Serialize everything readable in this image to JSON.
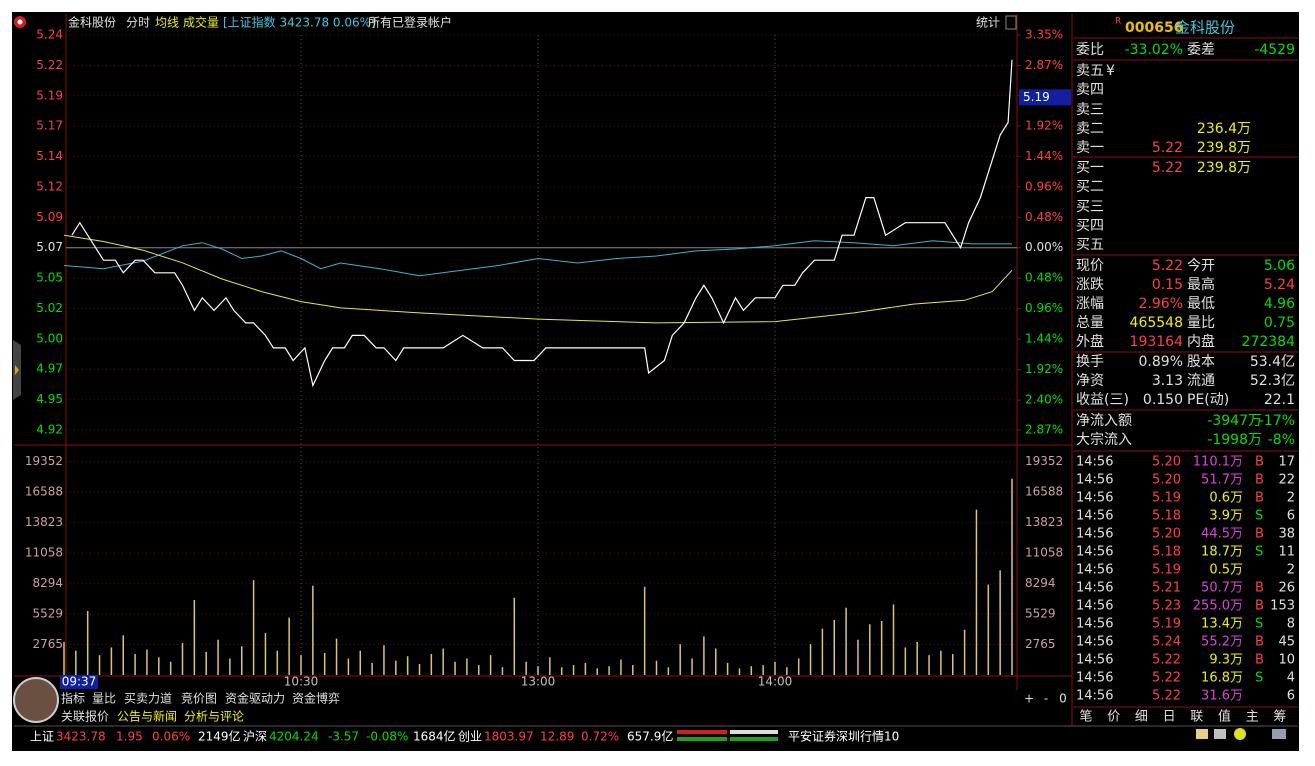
{
  "header": {
    "stock_name": "金科股份",
    "tabs": [
      "分时",
      "均线",
      "成交量"
    ],
    "index_info": "[上证指数 3423.78 0.06%]",
    "account": "所有已登录帐户",
    "stats_button": "统计"
  },
  "chart_data": {
    "type": "line",
    "xlim": [
      0,
      240
    ],
    "xticks": [
      {
        "value": 60,
        "label": "10:30"
      },
      {
        "value": 120,
        "label": "13:00"
      },
      {
        "value": 180,
        "label": "14:00"
      }
    ],
    "cursor_x": {
      "value": 7,
      "label": "09:37"
    },
    "ylim": [
      4.9245,
      5.2398
    ],
    "yticks": [
      {
        "value": 5.2398,
        "label": "5.24"
      },
      {
        "value": 5.2155,
        "label": "5.22"
      },
      {
        "value": 5.1913,
        "label": "5.19"
      },
      {
        "value": 5.167,
        "label": "5.17"
      },
      {
        "value": 5.1428,
        "label": "5.14"
      },
      {
        "value": 5.1185,
        "label": "5.12"
      },
      {
        "value": 5.0943,
        "label": "5.09"
      },
      5.07,
      {
        "value": 5.0457,
        "label": "5.05"
      },
      {
        "value": 5.0215,
        "label": "5.02"
      },
      {
        "value": 4.9972,
        "label": "5.00"
      },
      {
        "value": 4.973,
        "label": "4.97"
      },
      {
        "value": 4.9487,
        "label": "4.95"
      },
      {
        "value": 4.9245,
        "label": "4.92"
      }
    ],
    "y2lim": [
      -2.87,
      3.35
    ],
    "y2ticks": [
      {
        "value": 3.35,
        "label": "3.35%"
      },
      {
        "value": 2.87,
        "label": "2.87%"
      },
      {
        "value": 2.4,
        "label": "2.40%"
      },
      {
        "value": 1.92,
        "label": "1.92%"
      },
      {
        "value": 1.44,
        "label": "1.44%"
      },
      {
        "value": 0.96,
        "label": "0.96%"
      },
      {
        "value": 0.48,
        "label": "0.48%"
      },
      {
        "value": 0,
        "label": "0.00%"
      },
      {
        "value": -0.48,
        "label": "0.48%"
      },
      {
        "value": -0.96,
        "label": "0.96%"
      },
      {
        "value": -1.44,
        "label": "1.44%"
      },
      {
        "value": -1.92,
        "label": "1.92%"
      },
      {
        "value": -2.4,
        "label": "2.40%"
      },
      {
        "value": -2.87,
        "label": "2.87%"
      }
    ],
    "grid": true,
    "price_tag": 5.19,
    "price": {
      "color": "#ffffff",
      "x": [
        2,
        4,
        6,
        8,
        10,
        13,
        15,
        18,
        20,
        23,
        25,
        28,
        30,
        33,
        35,
        38,
        41,
        43,
        46,
        48,
        51,
        53,
        56,
        58,
        61,
        63,
        66,
        68,
        71,
        73,
        76,
        79,
        81,
        84,
        86,
        91,
        96,
        101,
        106,
        111,
        114,
        116,
        119,
        122,
        124,
        127,
        132,
        137,
        142,
        147,
        148,
        152,
        154,
        157,
        160,
        162,
        164,
        167,
        170,
        172,
        175,
        177,
        180,
        182,
        185,
        187,
        190,
        192,
        195,
        197,
        200,
        203,
        205,
        208,
        213,
        218,
        223,
        227,
        229,
        232,
        234,
        237,
        239,
        240
      ],
      "values": [
        5.08,
        5.09,
        5.08,
        5.07,
        5.06,
        5.06,
        5.05,
        5.06,
        5.06,
        5.05,
        5.05,
        5.05,
        5.04,
        5.02,
        5.03,
        5.02,
        5.03,
        5.02,
        5.01,
        5.01,
        5.0,
        4.99,
        4.99,
        4.98,
        4.99,
        4.96,
        4.98,
        4.99,
        4.99,
        5.0,
        5.0,
        4.99,
        4.99,
        4.98,
        4.99,
        4.99,
        4.99,
        5.0,
        4.99,
        4.99,
        4.98,
        4.98,
        4.98,
        4.99,
        4.99,
        4.99,
        4.99,
        4.99,
        4.99,
        4.99,
        4.97,
        4.98,
        5.0,
        5.01,
        5.03,
        5.04,
        5.03,
        5.01,
        5.03,
        5.02,
        5.03,
        5.03,
        5.03,
        5.04,
        5.04,
        5.05,
        5.06,
        5.06,
        5.06,
        5.08,
        5.08,
        5.11,
        5.11,
        5.08,
        5.09,
        5.09,
        5.09,
        5.07,
        5.09,
        5.11,
        5.13,
        5.16,
        5.17,
        5.22
      ]
    },
    "average": {
      "color": "#e6e650",
      "x": [
        0,
        10,
        20,
        30,
        40,
        50,
        60,
        70,
        90,
        120,
        150,
        180,
        200,
        215,
        228,
        235,
        240
      ],
      "values": [
        5.08,
        5.075,
        5.068,
        5.058,
        5.045,
        5.035,
        5.027,
        5.022,
        5.018,
        5.013,
        5.01,
        5.011,
        5.018,
        5.025,
        5.028,
        5.035,
        5.052
      ]
    },
    "index": {
      "color": "#3cb4cc",
      "axis": "y2",
      "x": [
        0,
        10,
        20,
        30,
        35,
        40,
        45,
        50,
        55,
        60,
        65,
        70,
        80,
        90,
        100,
        110,
        120,
        130,
        140,
        150,
        160,
        170,
        180,
        190,
        200,
        210,
        220,
        230,
        240
      ],
      "values": [
        -0.28,
        -0.33,
        -0.21,
        0.03,
        0.08,
        -0.02,
        -0.17,
        -0.13,
        -0.05,
        -0.17,
        -0.33,
        -0.24,
        -0.33,
        -0.44,
        -0.36,
        -0.28,
        -0.17,
        -0.24,
        -0.17,
        -0.13,
        -0.05,
        -0.02,
        0.03,
        0.11,
        0.08,
        0.03,
        0.11,
        0.06,
        0.06
      ]
    },
    "volume": {
      "color": "#d8c86c",
      "ylim": [
        0,
        20500
      ],
      "yticks": [
        19352,
        16588,
        13823,
        11058,
        8294,
        5529,
        2765
      ],
      "x": [
        0,
        3,
        6,
        9,
        12,
        15,
        18,
        21,
        24,
        27,
        30,
        33,
        36,
        39,
        42,
        45,
        48,
        51,
        54,
        57,
        60,
        63,
        66,
        69,
        72,
        75,
        78,
        81,
        84,
        87,
        90,
        93,
        96,
        99,
        102,
        105,
        108,
        111,
        114,
        117,
        120,
        123,
        126,
        129,
        132,
        135,
        138,
        141,
        144,
        147,
        150,
        153,
        156,
        159,
        162,
        165,
        168,
        171,
        174,
        177,
        180,
        183,
        186,
        189,
        192,
        195,
        198,
        201,
        204,
        207,
        210,
        213,
        216,
        219,
        222,
        225,
        228,
        231,
        234,
        237,
        240
      ],
      "values": [
        3000,
        2200,
        5800,
        1800,
        2500,
        3600,
        1900,
        2300,
        1600,
        1200,
        2900,
        6800,
        2100,
        3200,
        1500,
        2600,
        8600,
        3800,
        2200,
        5200,
        1800,
        8100,
        2000,
        3300,
        1500,
        2200,
        1100,
        2700,
        1300,
        1700,
        1000,
        1900,
        2400,
        1200,
        1500,
        900,
        1800,
        700,
        7000,
        1200,
        800,
        1600,
        700,
        900,
        1100,
        600,
        800,
        1400,
        900,
        8000,
        1300,
        700,
        2800,
        1500,
        3500,
        2400,
        1100,
        600,
        800,
        900,
        1200,
        700,
        1500,
        2800,
        4200,
        5000,
        6100,
        3200,
        4600,
        4900,
        6400,
        2500,
        3000,
        1800,
        2200,
        1900,
        4100,
        15000,
        8200,
        9500,
        17800
      ]
    }
  },
  "quote": {
    "marker": "R",
    "code": "000656",
    "name": "金科股份",
    "committee": [
      {
        "label": "委比",
        "value": "-33.02%",
        "color": "#00e000"
      },
      {
        "label": "委差",
        "value": "-4529",
        "color": "#00e000"
      }
    ],
    "asks": [
      {
        "label": "卖五",
        "marker": "¥"
      },
      {
        "label": "卖四"
      },
      {
        "label": "卖三"
      },
      {
        "label": "卖二",
        "volume": "236.4万"
      },
      {
        "label": "卖一",
        "price": "5.22",
        "volume": "239.8万"
      }
    ],
    "bids": [
      {
        "label": "买一",
        "price": "5.22",
        "volume": "239.8万"
      },
      {
        "label": "买二"
      },
      {
        "label": "买三"
      },
      {
        "label": "买四"
      },
      {
        "label": "买五"
      }
    ],
    "stats": [
      [
        {
          "label": "现价",
          "value": "5.22",
          "color": "#ff4040"
        },
        {
          "label": "今开",
          "value": "5.06",
          "color": "#00e000"
        }
      ],
      [
        {
          "label": "涨跌",
          "value": "0.15",
          "color": "#ff4040"
        },
        {
          "label": "最高",
          "value": "5.24",
          "color": "#ff4040"
        }
      ],
      [
        {
          "label": "涨幅",
          "value": "2.96%",
          "color": "#ff4040"
        },
        {
          "label": "最低",
          "value": "4.96",
          "color": "#00e000"
        }
      ],
      [
        {
          "label": "总量",
          "value": "465548",
          "color": "#f0f000"
        },
        {
          "label": "量比",
          "value": "0.75",
          "color": "#00e000"
        }
      ],
      [
        {
          "label": "外盘",
          "value": "193164",
          "color": "#ff4040"
        },
        {
          "label": "内盘",
          "value": "272384",
          "color": "#00e000"
        }
      ],
      [
        {
          "label": "换手",
          "value": "0.89%",
          "color": "#e0e0e0"
        },
        {
          "label": "股本",
          "value": "53.4亿",
          "color": "#e0e0e0"
        }
      ],
      [
        {
          "label": "净资",
          "value": "3.13",
          "color": "#e0e0e0"
        },
        {
          "label": "流通",
          "value": "52.3亿",
          "color": "#e0e0e0"
        }
      ],
      [
        {
          "label": "收益(三)",
          "value": "0.150",
          "color": "#e0e0e0"
        },
        {
          "label": "PE(动)",
          "value": "22.1",
          "color": "#e0e0e0"
        }
      ]
    ],
    "flows": [
      {
        "label": "净流入额",
        "value": "-3947万",
        "pct": "-17%"
      },
      {
        "label": "大宗流入",
        "value": "-1998万",
        "pct": "-8%"
      }
    ],
    "trades": [
      {
        "time": "14:56",
        "price": "5.20",
        "volume": "110.1万",
        "volume_color": "#e040e0",
        "side": "B",
        "count": "17"
      },
      {
        "time": "14:56",
        "price": "5.20",
        "volume": "51.7万",
        "volume_color": "#e040e0",
        "side": "B",
        "count": "22"
      },
      {
        "time": "14:56",
        "price": "5.19",
        "volume": "0.6万",
        "volume_color": "#f0f000",
        "side": "B",
        "count": "2"
      },
      {
        "time": "14:56",
        "price": "5.18",
        "volume": "3.9万",
        "volume_color": "#f0f000",
        "side": "S",
        "count": "6"
      },
      {
        "time": "14:56",
        "price": "5.20",
        "volume": "44.5万",
        "volume_color": "#e040e0",
        "side": "B",
        "count": "38"
      },
      {
        "time": "14:56",
        "price": "5.18",
        "volume": "18.7万",
        "volume_color": "#f0f000",
        "side": "S",
        "count": "11"
      },
      {
        "time": "14:56",
        "price": "5.19",
        "volume": "0.5万",
        "volume_color": "#f0f000",
        "count": "2"
      },
      {
        "time": "14:56",
        "price": "5.21",
        "volume": "50.7万",
        "volume_color": "#e040e0",
        "side": "B",
        "count": "26"
      },
      {
        "time": "14:56",
        "price": "5.23",
        "volume": "255.0万",
        "volume_color": "#e040e0",
        "side": "B",
        "count": "153"
      },
      {
        "time": "14:56",
        "price": "5.19",
        "volume": "13.4万",
        "volume_color": "#f0f000",
        "side": "S",
        "count": "8"
      },
      {
        "time": "14:56",
        "price": "5.24",
        "volume": "55.2万",
        "volume_color": "#e040e0",
        "side": "B",
        "count": "45"
      },
      {
        "time": "14:56",
        "price": "5.22",
        "volume": "9.3万",
        "volume_color": "#f0f000",
        "side": "B",
        "count": "10"
      },
      {
        "time": "14:56",
        "price": "5.22",
        "volume": "16.8万",
        "volume_color": "#f0f000",
        "side": "S",
        "count": "4"
      },
      {
        "time": "14:56",
        "price": "5.22",
        "volume": "31.6万",
        "volume_color": "#e040e0",
        "count": "6"
      }
    ],
    "tabs": [
      "笔",
      "价",
      "细",
      "日",
      "联",
      "值",
      "主",
      "筹"
    ]
  },
  "bottom_tabs": {
    "row1": [
      "指标",
      "量比",
      "买卖力道",
      "竞价图",
      "资金驱动力",
      "资金博弈"
    ],
    "row2": [
      "关联报价",
      "公告与新闻",
      "分析与评论"
    ],
    "zoom_buttons": [
      "+",
      "-",
      "0"
    ]
  },
  "status_bar": {
    "items": [
      {
        "text": "上证",
        "color": "#ffffff"
      },
      {
        "text": "3423.78",
        "color": "#ff4040"
      },
      {
        "text": "1.95",
        "color": "#ff4040"
      },
      {
        "text": "0.06%",
        "color": "#ff4040"
      },
      {
        "text": "2149亿",
        "color": "#ffffff"
      },
      {
        "text": "沪深",
        "color": "#ffffff"
      },
      {
        "text": "4204.24",
        "color": "#00e000"
      },
      {
        "text": "-3.57",
        "color": "#00e000"
      },
      {
        "text": "-0.08%",
        "color": "#00e000"
      },
      {
        "text": "1684亿",
        "color": "#ffffff"
      },
      {
        "text": "创业",
        "color": "#ffffff"
      },
      {
        "text": "1803.97",
        "color": "#ff4040"
      },
      {
        "text": "12.89",
        "color": "#ff4040"
      },
      {
        "text": "0.72%",
        "color": "#ff4040"
      },
      {
        "text": "657.9亿",
        "color": "#ffffff"
      }
    ],
    "broker": "平安证券深圳行情10"
  }
}
